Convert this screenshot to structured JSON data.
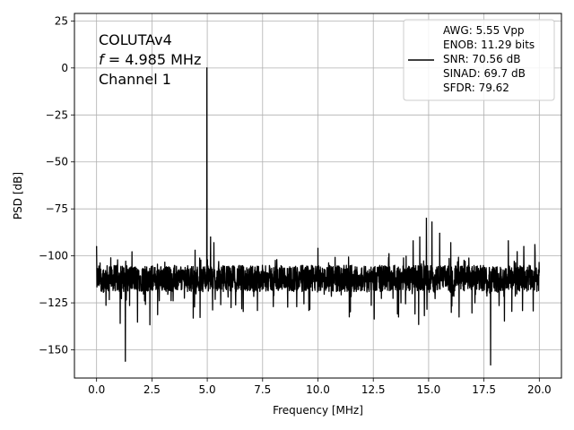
{
  "chart_data": {
    "type": "line",
    "xlabel": "Frequency [MHz]",
    "ylabel": "PSD [dB]",
    "xlim": [
      -1.0,
      21.0
    ],
    "ylim": [
      -165,
      29
    ],
    "xticks": [
      0.0,
      2.5,
      5.0,
      7.5,
      10.0,
      12.5,
      15.0,
      17.5,
      20.0
    ],
    "xtick_labels": [
      "0.0",
      "2.5",
      "5.0",
      "7.5",
      "10.0",
      "12.5",
      "15.0",
      "17.5",
      "20.0"
    ],
    "yticks": [
      25,
      0,
      -25,
      -50,
      -75,
      -100,
      -125,
      -150
    ],
    "ytick_labels": [
      "25",
      "0",
      "−25",
      "−50",
      "−75",
      "−100",
      "−125",
      "−150"
    ],
    "grid": true,
    "annotation": {
      "line1": "COLUTAv4",
      "line2_var": "f",
      "line2_rest": " = 4.985 MHz",
      "line3": "Channel 1"
    },
    "legend": {
      "placement": "upper right",
      "entries": [
        "AWG: 5.55 Vpp",
        "ENOB: 11.29 bits",
        "SNR: 70.56 dB",
        "SINAD: 69.7 dB",
        "SFDR: 79.62"
      ]
    },
    "series": [
      {
        "color": "#000000",
        "noise_floor_db": -112,
        "noise_spread_db": 7,
        "x_range": [
          0.0,
          20.0
        ],
        "peaks": [
          {
            "x": 0.0,
            "y": -95
          },
          {
            "x": 1.3,
            "y": -156
          },
          {
            "x": 4.45,
            "y": -97
          },
          {
            "x": 4.985,
            "y": 0
          },
          {
            "x": 5.15,
            "y": -90
          },
          {
            "x": 5.3,
            "y": -93
          },
          {
            "x": 10.0,
            "y": -96
          },
          {
            "x": 14.3,
            "y": -92
          },
          {
            "x": 14.6,
            "y": -90
          },
          {
            "x": 14.9,
            "y": -80
          },
          {
            "x": 15.15,
            "y": -82
          },
          {
            "x": 15.5,
            "y": -88
          },
          {
            "x": 16.0,
            "y": -93
          },
          {
            "x": 17.8,
            "y": -158
          },
          {
            "x": 18.6,
            "y": -92
          },
          {
            "x": 19.3,
            "y": -95
          },
          {
            "x": 19.8,
            "y": -94
          }
        ]
      }
    ]
  }
}
